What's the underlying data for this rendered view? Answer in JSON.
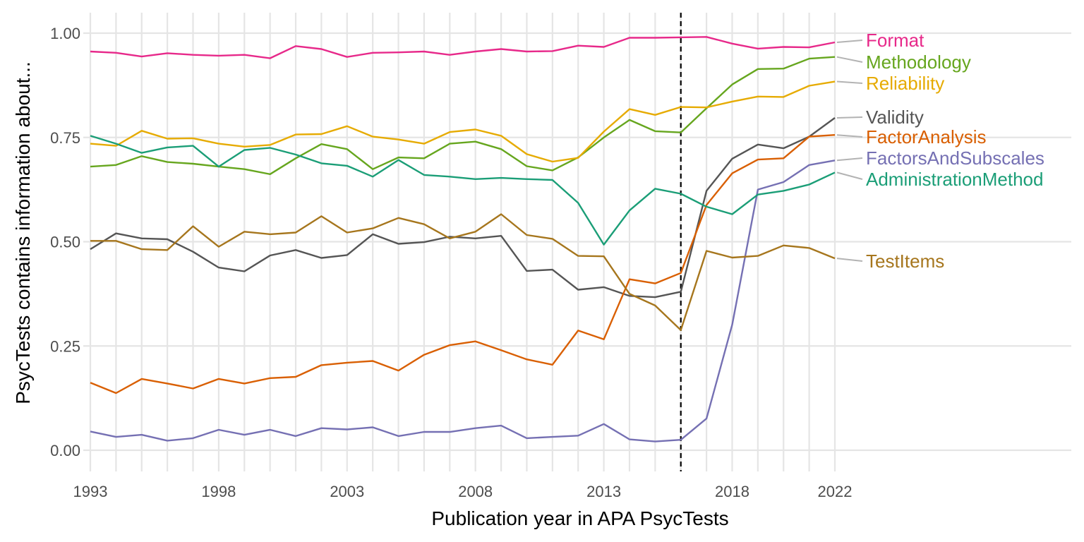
{
  "chart_data": {
    "type": "line",
    "xlabel": "Publication year in APA PsycTests",
    "ylabel": "PsycTests contains information about...",
    "xlim": [
      1993,
      2022
    ],
    "ylim": [
      0,
      1
    ],
    "x_ticks": [
      "1993",
      "1998",
      "2003",
      "2008",
      "2013",
      "2018",
      "2022"
    ],
    "y_ticks": [
      "0.00",
      "0.25",
      "0.50",
      "0.75",
      "1.00"
    ],
    "vline_x": 2016,
    "grid": true,
    "legend": "direct labels at right end of lines",
    "x": [
      1993,
      1994,
      1995,
      1996,
      1997,
      1998,
      1999,
      2000,
      2001,
      2002,
      2003,
      2004,
      2005,
      2006,
      2007,
      2008,
      2009,
      2010,
      2011,
      2012,
      2013,
      2014,
      2015,
      2016,
      2017,
      2018,
      2019,
      2020,
      2021,
      2022
    ],
    "series": [
      {
        "name": "Format",
        "color": "#E7298A",
        "values": [
          0.956,
          0.953,
          0.944,
          0.952,
          0.948,
          0.946,
          0.948,
          0.94,
          0.969,
          0.962,
          0.943,
          0.953,
          0.954,
          0.956,
          0.948,
          0.956,
          0.962,
          0.956,
          0.957,
          0.97,
          0.967,
          0.989,
          0.989,
          0.99,
          0.991,
          0.975,
          0.963,
          0.967,
          0.966,
          0.978
        ]
      },
      {
        "name": "Methodology",
        "color": "#66A61E",
        "values": [
          0.68,
          0.684,
          0.705,
          0.691,
          0.687,
          0.68,
          0.674,
          0.662,
          0.7,
          0.734,
          0.722,
          0.674,
          0.702,
          0.7,
          0.735,
          0.74,
          0.722,
          0.681,
          0.671,
          0.702,
          0.75,
          0.792,
          0.765,
          0.762,
          0.82,
          0.877,
          0.914,
          0.915,
          0.939,
          0.943
        ]
      },
      {
        "name": "Reliability",
        "color": "#E6AB02",
        "values": [
          0.735,
          0.73,
          0.766,
          0.747,
          0.748,
          0.735,
          0.728,
          0.732,
          0.757,
          0.758,
          0.777,
          0.752,
          0.745,
          0.735,
          0.763,
          0.769,
          0.754,
          0.71,
          0.692,
          0.701,
          0.764,
          0.818,
          0.804,
          0.823,
          0.822,
          0.836,
          0.848,
          0.847,
          0.874,
          0.884
        ]
      },
      {
        "name": "Validity",
        "color": "#555555",
        "values": [
          0.482,
          0.52,
          0.508,
          0.506,
          0.476,
          0.438,
          0.429,
          0.467,
          0.48,
          0.461,
          0.468,
          0.518,
          0.495,
          0.499,
          0.512,
          0.508,
          0.514,
          0.43,
          0.433,
          0.385,
          0.391,
          0.37,
          0.367,
          0.38,
          0.622,
          0.699,
          0.733,
          0.724,
          0.752,
          0.797
        ]
      },
      {
        "name": "FactorAnalysis",
        "color": "#D95F02",
        "values": [
          0.162,
          0.137,
          0.171,
          0.16,
          0.148,
          0.171,
          0.16,
          0.173,
          0.176,
          0.204,
          0.21,
          0.214,
          0.191,
          0.229,
          0.252,
          0.261,
          0.24,
          0.218,
          0.205,
          0.287,
          0.266,
          0.41,
          0.4,
          0.425,
          0.588,
          0.664,
          0.697,
          0.7,
          0.752,
          0.756
        ]
      },
      {
        "name": "FactorsAndSubscales",
        "color": "#7570B3",
        "values": [
          0.045,
          0.032,
          0.037,
          0.023,
          0.029,
          0.049,
          0.037,
          0.049,
          0.034,
          0.053,
          0.05,
          0.055,
          0.034,
          0.044,
          0.044,
          0.053,
          0.059,
          0.029,
          0.032,
          0.035,
          0.063,
          0.026,
          0.021,
          0.025,
          0.076,
          0.301,
          0.625,
          0.643,
          0.684,
          0.695
        ]
      },
      {
        "name": "AdministrationMethod",
        "color": "#1B9E77",
        "values": [
          0.754,
          0.735,
          0.713,
          0.726,
          0.73,
          0.68,
          0.72,
          0.725,
          0.709,
          0.688,
          0.682,
          0.656,
          0.696,
          0.66,
          0.656,
          0.65,
          0.653,
          0.65,
          0.648,
          0.593,
          0.493,
          0.575,
          0.627,
          0.615,
          0.584,
          0.566,
          0.613,
          0.622,
          0.637,
          0.666
        ]
      },
      {
        "name": "TestItems",
        "color": "#A6761D",
        "values": [
          0.502,
          0.502,
          0.482,
          0.48,
          0.537,
          0.488,
          0.524,
          0.518,
          0.522,
          0.561,
          0.522,
          0.532,
          0.557,
          0.542,
          0.508,
          0.524,
          0.566,
          0.516,
          0.507,
          0.466,
          0.465,
          0.375,
          0.347,
          0.288,
          0.478,
          0.462,
          0.466,
          0.491,
          0.485,
          0.46
        ]
      }
    ]
  }
}
